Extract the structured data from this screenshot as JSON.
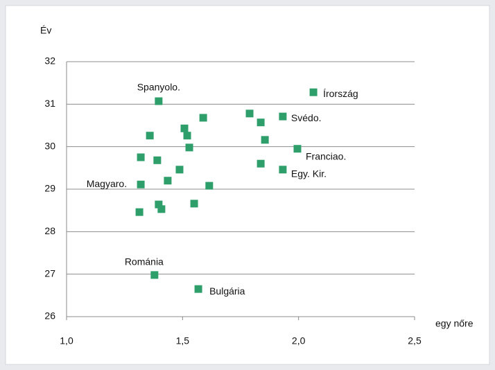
{
  "chart_data": {
    "type": "scatter",
    "y_label": "Év",
    "x_label": "egy nőre",
    "x": [
      2.064,
      1.397,
      1.789,
      1.932,
      1.589,
      1.837,
      1.508,
      1.359,
      1.52,
      1.855,
      1.529,
      1.995,
      1.32,
      1.391,
      1.837,
      1.487,
      1.932,
      1.436,
      1.32,
      1.615,
      1.397,
      1.55,
      1.409,
      1.314,
      1.379,
      1.568
    ],
    "y": [
      31.28,
      31.07,
      30.78,
      30.71,
      30.68,
      30.57,
      30.43,
      30.26,
      30.26,
      30.16,
      29.98,
      29.95,
      29.75,
      29.68,
      29.6,
      29.46,
      29.46,
      29.2,
      29.11,
      29.08,
      28.64,
      28.66,
      28.53,
      28.46,
      26.98,
      26.65
    ],
    "point_labels": [
      "Írország",
      "Spanyolo.",
      null,
      "Svédo.",
      null,
      null,
      null,
      null,
      null,
      null,
      null,
      "Franciao.",
      null,
      null,
      null,
      null,
      "Egy. Kir.",
      null,
      "Magyaro.",
      null,
      null,
      null,
      null,
      null,
      "Románia",
      "Bulgária"
    ],
    "color": "#2e9e6b",
    "xlim": [
      1.0,
      2.5
    ],
    "xticks": [
      {
        "value": 1.0,
        "label": "1,0"
      },
      {
        "value": 1.5,
        "label": "1,5"
      },
      {
        "value": 2.0,
        "label": "2,0"
      },
      {
        "value": 2.5,
        "label": "2,5"
      }
    ],
    "ylim": [
      26,
      32
    ],
    "yticks": [
      26,
      27,
      28,
      29,
      30,
      31,
      32
    ],
    "grid": true
  }
}
